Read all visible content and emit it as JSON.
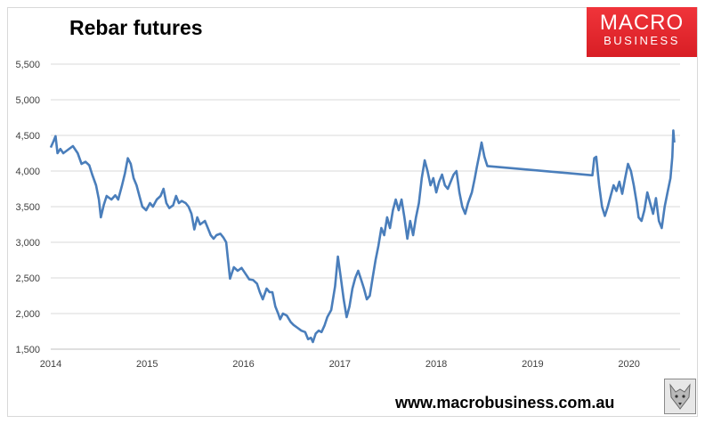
{
  "title": "Rebar futures",
  "logo": {
    "line1": "MACRO",
    "line2": "BUSINESS",
    "color": "#e2242b"
  },
  "source_url": "www.macrobusiness.com.au",
  "badge_icon": "fox-mascot-icon",
  "chart_data": {
    "type": "line",
    "title": "Rebar futures",
    "xlabel": "",
    "ylabel": "",
    "ylim": [
      1500,
      5500
    ],
    "xlim": [
      2014.0,
      2020.53
    ],
    "yticks": [
      1500,
      2000,
      2500,
      3000,
      3500,
      4000,
      4500,
      5000,
      5500
    ],
    "ytick_labels": [
      "1,500",
      "2,000",
      "2,500",
      "3,000",
      "3,500",
      "4,000",
      "4,500",
      "5,000",
      "5,500"
    ],
    "xticks": [
      2014,
      2015,
      2016,
      2017,
      2018,
      2019,
      2020
    ],
    "xtick_labels": [
      "2014",
      "2015",
      "2016",
      "2017",
      "2018",
      "2019",
      "2020"
    ],
    "grid": true,
    "legend": "none",
    "line_color": "#4a7ebb",
    "series": [
      {
        "values": [
          [
            2014.0,
            4330
          ],
          [
            2014.03,
            4420
          ],
          [
            2014.05,
            4490
          ],
          [
            2014.07,
            4250
          ],
          [
            2014.1,
            4310
          ],
          [
            2014.13,
            4250
          ],
          [
            2014.18,
            4300
          ],
          [
            2014.23,
            4350
          ],
          [
            2014.28,
            4250
          ],
          [
            2014.32,
            4100
          ],
          [
            2014.36,
            4130
          ],
          [
            2014.4,
            4080
          ],
          [
            2014.43,
            3950
          ],
          [
            2014.47,
            3800
          ],
          [
            2014.5,
            3600
          ],
          [
            2014.52,
            3350
          ],
          [
            2014.55,
            3520
          ],
          [
            2014.58,
            3650
          ],
          [
            2014.63,
            3600
          ],
          [
            2014.67,
            3660
          ],
          [
            2014.7,
            3600
          ],
          [
            2014.74,
            3800
          ],
          [
            2014.77,
            3970
          ],
          [
            2014.8,
            4180
          ],
          [
            2014.83,
            4100
          ],
          [
            2014.86,
            3900
          ],
          [
            2014.89,
            3800
          ],
          [
            2014.92,
            3650
          ],
          [
            2014.95,
            3500
          ],
          [
            2014.99,
            3450
          ],
          [
            2015.03,
            3550
          ],
          [
            2015.06,
            3500
          ],
          [
            2015.1,
            3600
          ],
          [
            2015.14,
            3650
          ],
          [
            2015.17,
            3750
          ],
          [
            2015.2,
            3550
          ],
          [
            2015.23,
            3480
          ],
          [
            2015.27,
            3520
          ],
          [
            2015.3,
            3650
          ],
          [
            2015.33,
            3550
          ],
          [
            2015.36,
            3580
          ],
          [
            2015.4,
            3550
          ],
          [
            2015.43,
            3500
          ],
          [
            2015.46,
            3400
          ],
          [
            2015.49,
            3180
          ],
          [
            2015.52,
            3350
          ],
          [
            2015.55,
            3250
          ],
          [
            2015.6,
            3300
          ],
          [
            2015.63,
            3200
          ],
          [
            2015.66,
            3100
          ],
          [
            2015.69,
            3050
          ],
          [
            2015.72,
            3100
          ],
          [
            2015.76,
            3120
          ],
          [
            2015.79,
            3070
          ],
          [
            2015.82,
            3000
          ],
          [
            2015.84,
            2750
          ],
          [
            2015.86,
            2490
          ],
          [
            2015.9,
            2650
          ],
          [
            2015.94,
            2600
          ],
          [
            2015.98,
            2640
          ],
          [
            2016.02,
            2560
          ],
          [
            2016.06,
            2480
          ],
          [
            2016.1,
            2470
          ],
          [
            2016.14,
            2420
          ],
          [
            2016.17,
            2300
          ],
          [
            2016.2,
            2200
          ],
          [
            2016.24,
            2350
          ],
          [
            2016.27,
            2300
          ],
          [
            2016.3,
            2300
          ],
          [
            2016.33,
            2100
          ],
          [
            2016.36,
            2000
          ],
          [
            2016.38,
            1920
          ],
          [
            2016.41,
            2000
          ],
          [
            2016.45,
            1970
          ],
          [
            2016.49,
            1880
          ],
          [
            2016.52,
            1840
          ],
          [
            2016.56,
            1800
          ],
          [
            2016.6,
            1760
          ],
          [
            2016.64,
            1740
          ],
          [
            2016.67,
            1640
          ],
          [
            2016.7,
            1660
          ],
          [
            2016.72,
            1600
          ],
          [
            2016.75,
            1720
          ],
          [
            2016.78,
            1760
          ],
          [
            2016.81,
            1740
          ],
          [
            2016.84,
            1830
          ],
          [
            2016.87,
            1950
          ],
          [
            2016.91,
            2050
          ],
          [
            2016.95,
            2380
          ],
          [
            2016.98,
            2800
          ],
          [
            2017.01,
            2500
          ],
          [
            2017.04,
            2200
          ],
          [
            2017.07,
            1950
          ],
          [
            2017.1,
            2100
          ],
          [
            2017.13,
            2350
          ],
          [
            2017.16,
            2500
          ],
          [
            2017.19,
            2600
          ],
          [
            2017.22,
            2480
          ],
          [
            2017.25,
            2350
          ],
          [
            2017.28,
            2200
          ],
          [
            2017.31,
            2250
          ],
          [
            2017.34,
            2500
          ],
          [
            2017.37,
            2750
          ],
          [
            2017.4,
            2950
          ],
          [
            2017.43,
            3200
          ],
          [
            2017.46,
            3100
          ],
          [
            2017.49,
            3350
          ],
          [
            2017.52,
            3200
          ],
          [
            2017.55,
            3450
          ],
          [
            2017.58,
            3600
          ],
          [
            2017.61,
            3450
          ],
          [
            2017.64,
            3600
          ],
          [
            2017.67,
            3350
          ],
          [
            2017.7,
            3050
          ],
          [
            2017.73,
            3300
          ],
          [
            2017.76,
            3100
          ],
          [
            2017.79,
            3350
          ],
          [
            2017.82,
            3550
          ],
          [
            2017.85,
            3900
          ],
          [
            2017.88,
            4150
          ],
          [
            2017.91,
            4000
          ],
          [
            2017.94,
            3800
          ],
          [
            2017.97,
            3900
          ],
          [
            2018.0,
            3700
          ],
          [
            2018.03,
            3850
          ],
          [
            2018.06,
            3950
          ],
          [
            2018.09,
            3800
          ],
          [
            2018.12,
            3750
          ],
          [
            2018.15,
            3850
          ],
          [
            2018.18,
            3950
          ],
          [
            2018.21,
            4000
          ],
          [
            2018.24,
            3700
          ],
          [
            2018.27,
            3500
          ],
          [
            2018.3,
            3400
          ],
          [
            2018.33,
            3550
          ],
          [
            2018.37,
            3700
          ],
          [
            2018.4,
            3900
          ],
          [
            2018.42,
            4050
          ],
          [
            2018.45,
            4250
          ],
          [
            2018.47,
            4400
          ],
          [
            2018.5,
            4200
          ],
          [
            2018.53,
            4070
          ],
          [
            2019.62,
            3940
          ],
          [
            2019.64,
            4180
          ],
          [
            2019.66,
            4200
          ],
          [
            2019.69,
            3800
          ],
          [
            2019.72,
            3500
          ],
          [
            2019.75,
            3370
          ],
          [
            2019.78,
            3500
          ],
          [
            2019.81,
            3650
          ],
          [
            2019.84,
            3800
          ],
          [
            2019.87,
            3720
          ],
          [
            2019.9,
            3850
          ],
          [
            2019.93,
            3680
          ],
          [
            2019.96,
            3900
          ],
          [
            2019.99,
            4100
          ],
          [
            2020.02,
            4000
          ],
          [
            2020.05,
            3800
          ],
          [
            2020.08,
            3550
          ],
          [
            2020.1,
            3350
          ],
          [
            2020.13,
            3300
          ],
          [
            2020.16,
            3450
          ],
          [
            2020.19,
            3700
          ],
          [
            2020.22,
            3550
          ],
          [
            2020.25,
            3400
          ],
          [
            2020.28,
            3620
          ],
          [
            2020.31,
            3300
          ],
          [
            2020.34,
            3200
          ],
          [
            2020.37,
            3500
          ],
          [
            2020.4,
            3700
          ],
          [
            2020.43,
            3900
          ],
          [
            2020.45,
            4200
          ],
          [
            2020.46,
            4570
          ],
          [
            2020.47,
            4400
          ]
        ]
      }
    ]
  }
}
